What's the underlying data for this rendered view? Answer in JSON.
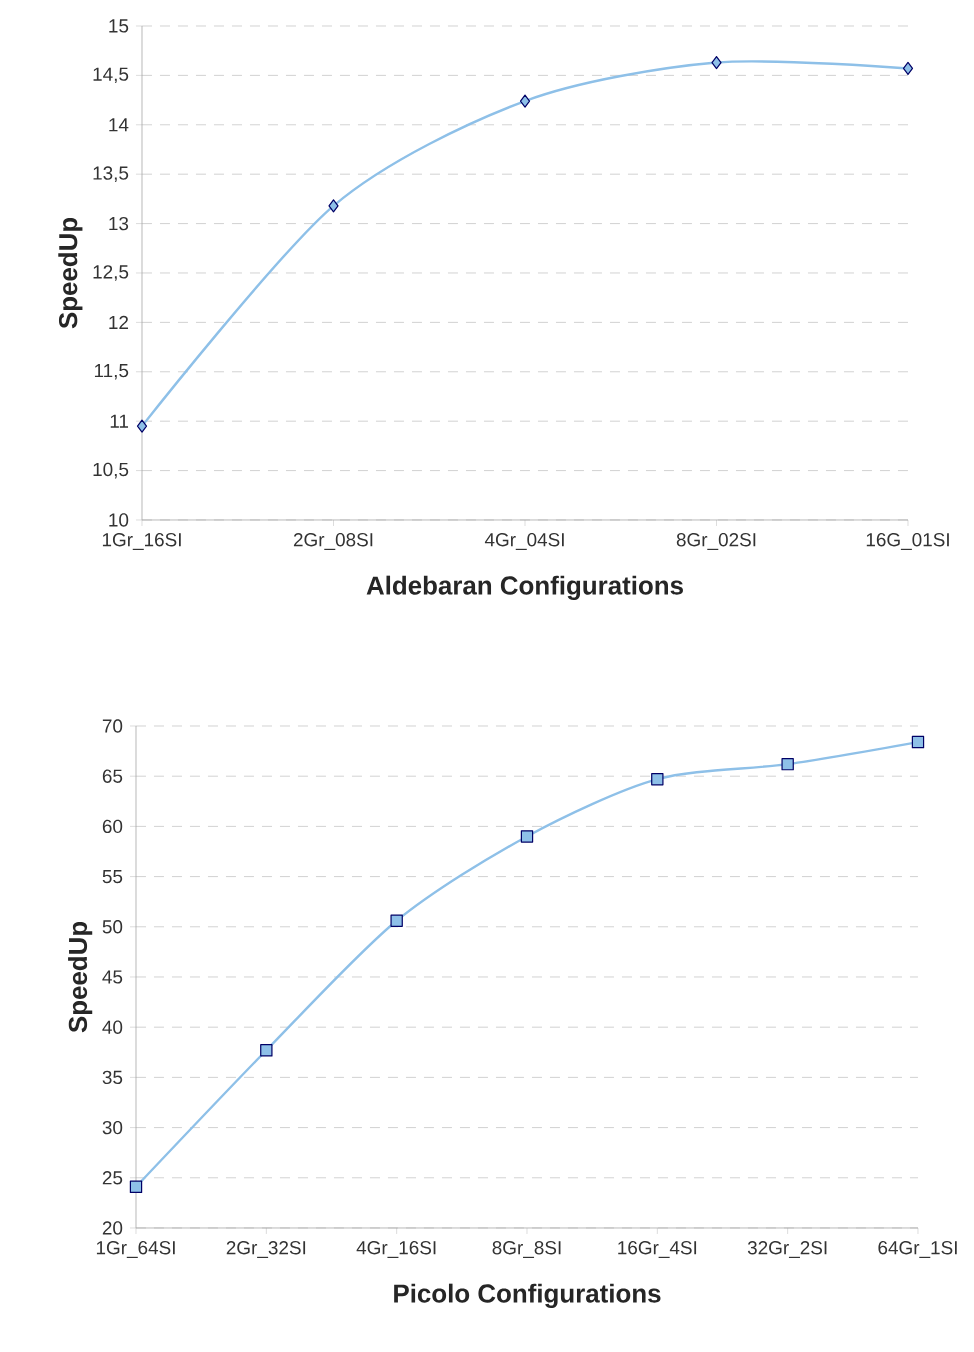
{
  "chart_data": [
    {
      "type": "line",
      "xlabel": "Aldebaran Configurations",
      "ylabel": "SpeedUp",
      "categories": [
        "1Gr_16SI",
        "2Gr_08SI",
        "4Gr_04SI",
        "8Gr_02SI",
        "16G_01SI"
      ],
      "series": [
        {
          "color": "#8ec0e8",
          "values": [
            10.95,
            13.18,
            14.24,
            14.63,
            14.57
          ]
        }
      ],
      "ylim": [
        10,
        15
      ],
      "yticks": [
        10,
        {
          "value": 10.5,
          "label": "10,5"
        },
        11,
        {
          "value": 11.5,
          "label": "11,5"
        },
        12,
        {
          "value": 12.5,
          "label": "12,5"
        },
        13,
        {
          "value": 13.5,
          "label": "13,5"
        },
        14,
        {
          "value": 14.5,
          "label": "14,5"
        },
        15
      ],
      "grid": "y",
      "marker": "diamond",
      "line_style": "solid"
    },
    {
      "type": "line",
      "xlabel": "Picolo Configurations",
      "ylabel": "SpeedUp",
      "categories": [
        "1Gr_64SI",
        "2Gr_32SI",
        "4Gr_16SI",
        "8Gr_8SI",
        "16Gr_4SI",
        "32Gr_2SI",
        "64Gr_1SI"
      ],
      "series": [
        {
          "color": "#8ec0e8",
          "values": [
            24.1,
            37.7,
            50.6,
            59.0,
            64.7,
            66.2,
            68.4
          ]
        }
      ],
      "ylim": [
        20,
        70
      ],
      "yticks": [
        20,
        25,
        30,
        35,
        40,
        45,
        50,
        55,
        60,
        65,
        70
      ],
      "grid": "y",
      "marker": "square",
      "line_style": "solid"
    }
  ]
}
